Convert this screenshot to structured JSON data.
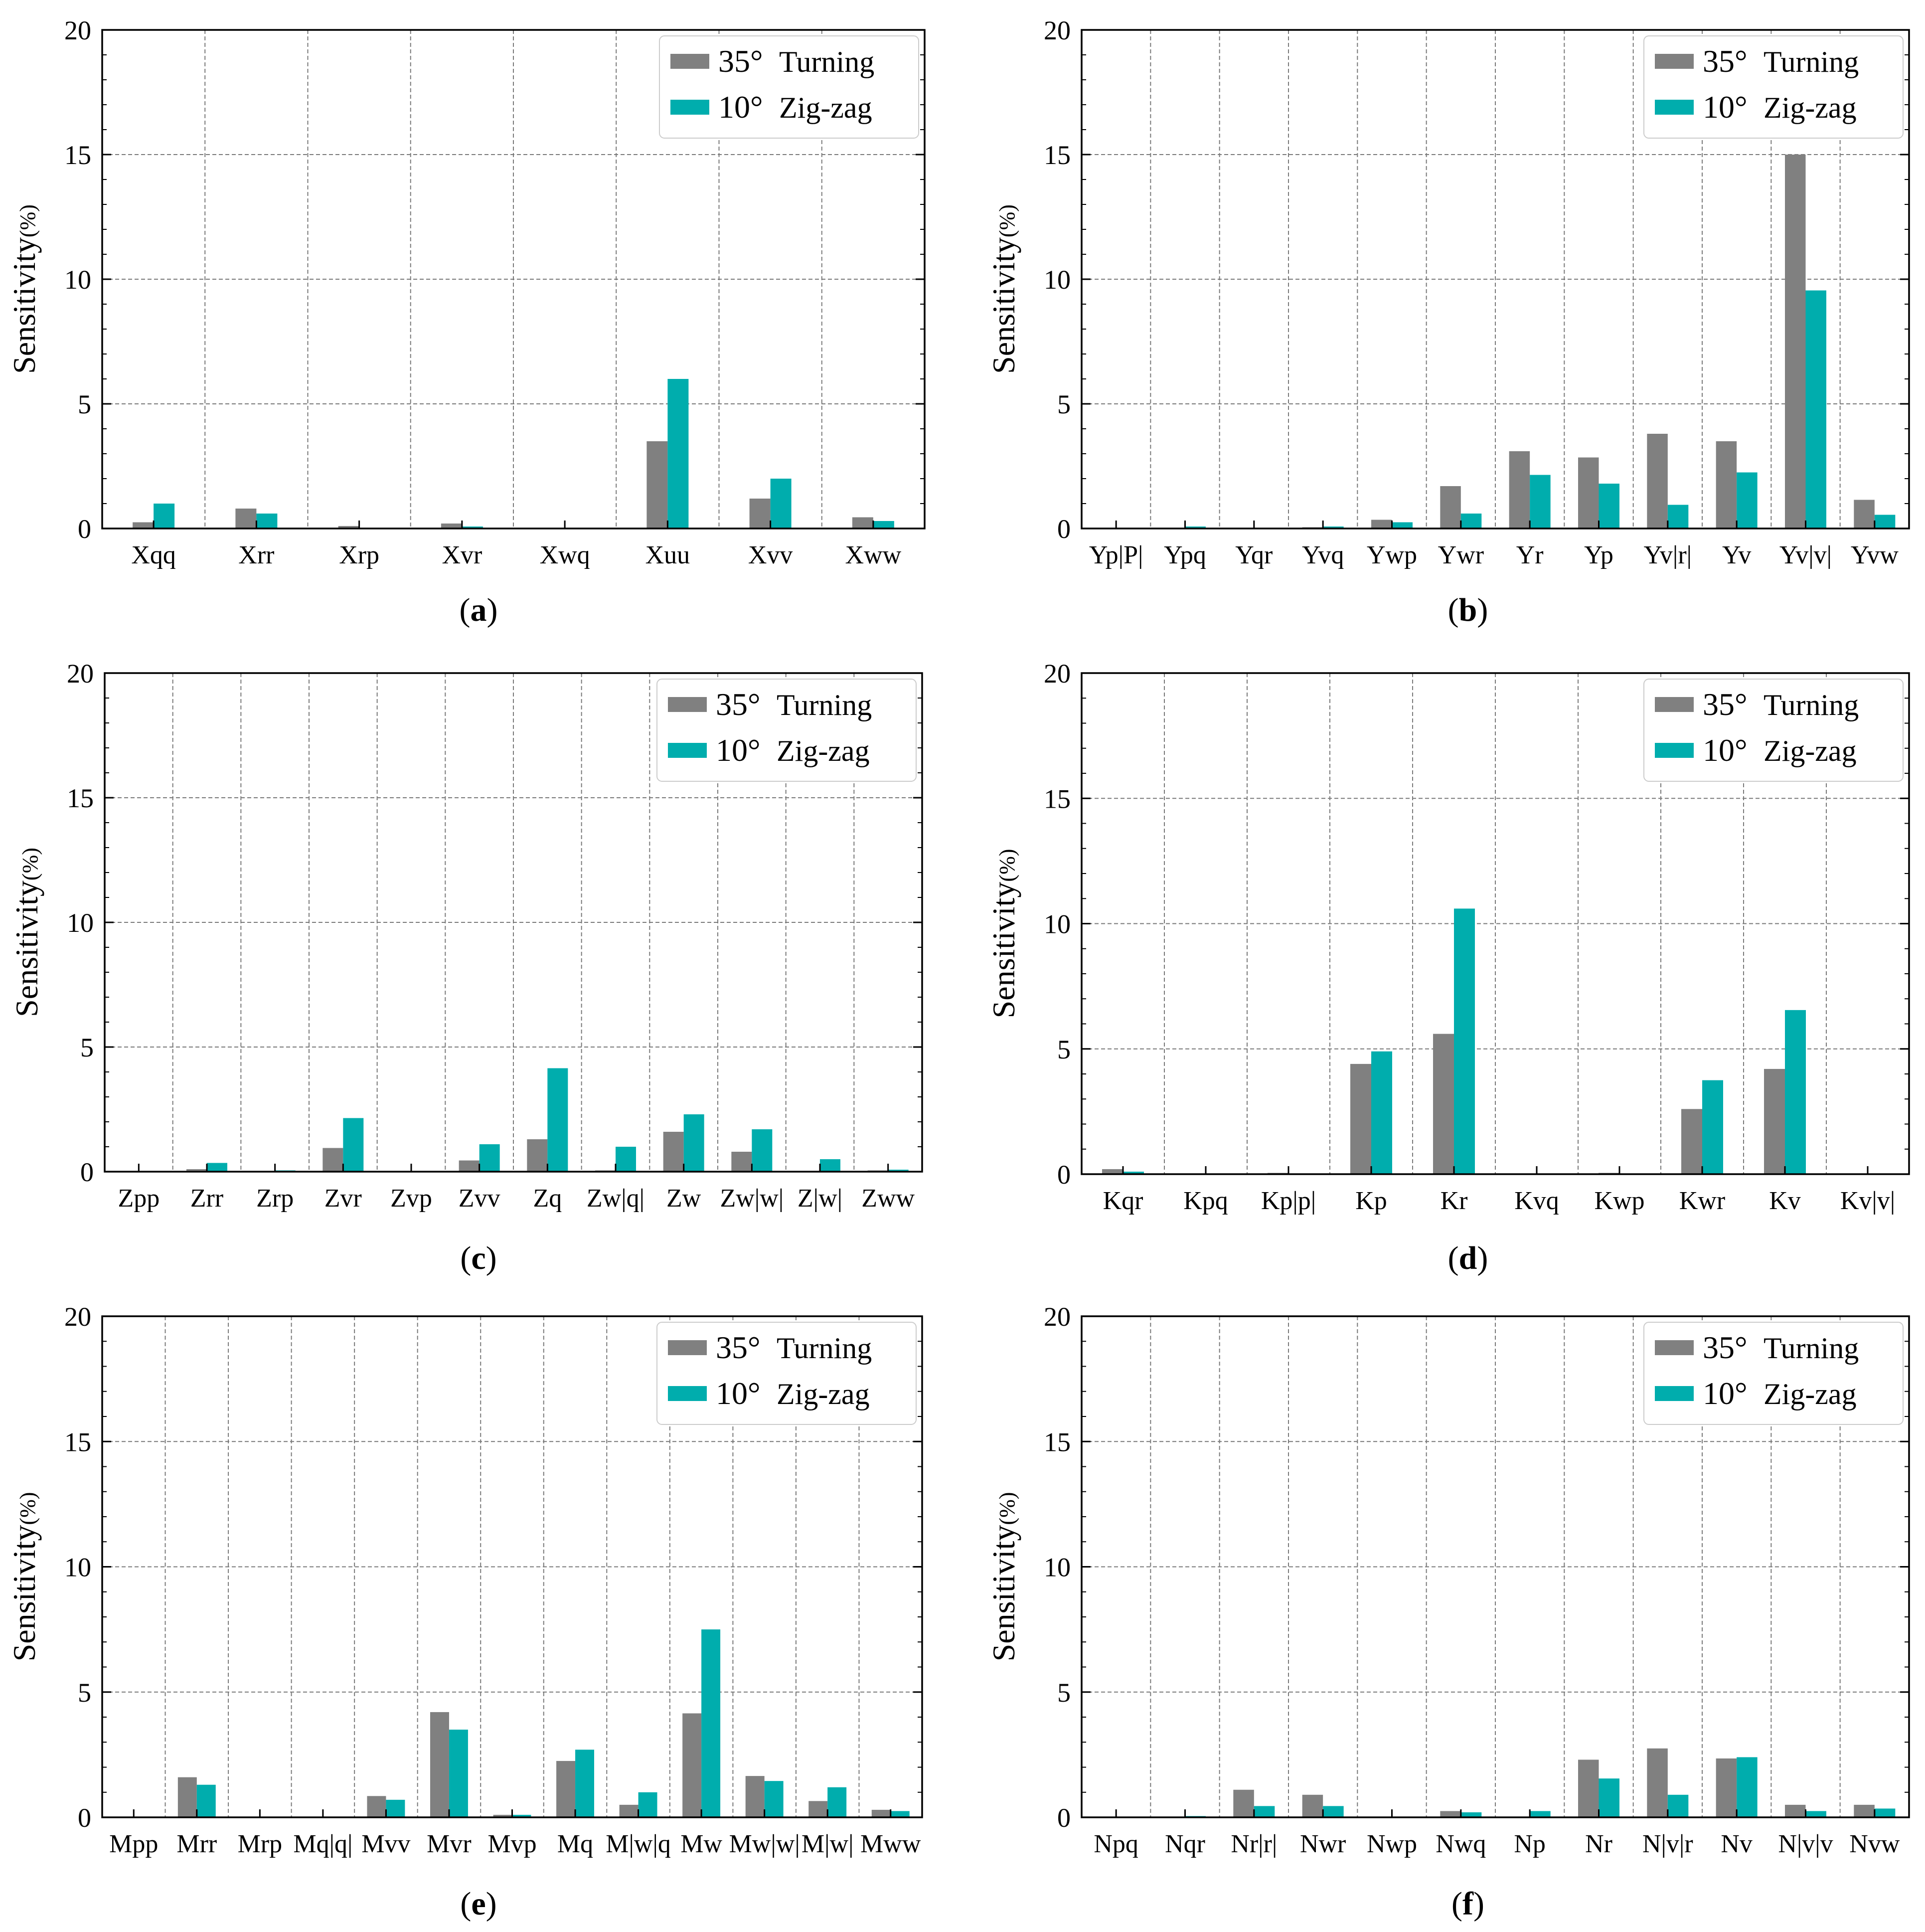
{
  "colors": {
    "turning": "#808080",
    "zigzag": "#00adad",
    "grid": "#7a7a7a",
    "axis": "#000000"
  },
  "chart_data": [
    {
      "panel": "a",
      "type": "bar",
      "caption_open": "(",
      "caption_letter": "a",
      "caption_close": ")",
      "ylabel": "Sensitivity",
      "ylabel_unit": "(%)",
      "ylim": [
        0,
        20
      ],
      "yticks": [
        "0",
        "5",
        "10",
        "15",
        "20"
      ],
      "yticks_values": [
        0,
        5,
        10,
        15,
        20
      ],
      "legend_position": "top-right",
      "categories": [
        "Xqq",
        "Xrr",
        "Xrp",
        "Xvr",
        "Xwq",
        "Xuu",
        "Xvv",
        "Xww"
      ],
      "series": [
        {
          "name_deg": "35°",
          "name_text": "Turning",
          "values": [
            0.25,
            0.8,
            0.1,
            0.2,
            0.02,
            3.5,
            1.2,
            0.45
          ]
        },
        {
          "name_deg": "10°",
          "name_text": "Zig-zag",
          "values": [
            1.0,
            0.6,
            0.02,
            0.08,
            0.0,
            6.0,
            2.0,
            0.3
          ]
        }
      ]
    },
    {
      "panel": "b",
      "type": "bar",
      "caption_open": "(",
      "caption_letter": "b",
      "caption_close": ")",
      "ylabel": "Sensitivity",
      "ylabel_unit": "(%)",
      "ylim": [
        0,
        20
      ],
      "yticks": [
        "0",
        "5",
        "10",
        "15",
        "20"
      ],
      "yticks_values": [
        0,
        5,
        10,
        15,
        20
      ],
      "legend_position": "top-right",
      "categories": [
        "Yp|P|",
        "Ypq",
        "Yqr",
        "Yvq",
        "Ywp",
        "Ywr",
        "Yr",
        "Yp",
        "Yv|r|",
        "Yv",
        "Yv|v|",
        "Yvw"
      ],
      "series": [
        {
          "name_deg": "35°",
          "name_text": "Turning",
          "values": [
            0.0,
            0.02,
            0.0,
            0.05,
            0.35,
            1.7,
            3.1,
            2.85,
            3.8,
            3.5,
            15.0,
            1.15
          ]
        },
        {
          "name_deg": "10°",
          "name_text": "Zig-zag",
          "values": [
            0.0,
            0.08,
            0.0,
            0.08,
            0.25,
            0.6,
            2.15,
            1.8,
            0.95,
            2.25,
            9.55,
            0.55
          ]
        }
      ]
    },
    {
      "panel": "c",
      "type": "bar",
      "caption_open": "(",
      "caption_letter": "c",
      "caption_close": ")",
      "ylabel": "Sensitivity",
      "ylabel_unit": "(%)",
      "ylim": [
        0,
        20
      ],
      "yticks": [
        "0",
        "5",
        "10",
        "15",
        "20"
      ],
      "yticks_values": [
        0,
        5,
        10,
        15,
        20
      ],
      "legend_position": "top-right",
      "categories": [
        "Zpp",
        "Zrr",
        "Zrp",
        "Zvr",
        "Zvp",
        "Zvv",
        "Zq",
        "Zw|q|",
        "Zw",
        "Zw|w|",
        "Z|w|",
        "Zww"
      ],
      "series": [
        {
          "name_deg": "35°",
          "name_text": "Turning",
          "values": [
            0.0,
            0.1,
            0.02,
            0.95,
            0.0,
            0.45,
            1.3,
            0.05,
            1.6,
            0.8,
            0.0,
            0.05
          ]
        },
        {
          "name_deg": "10°",
          "name_text": "Zig-zag",
          "values": [
            0.0,
            0.35,
            0.05,
            2.15,
            0.02,
            1.1,
            4.15,
            1.0,
            2.3,
            1.7,
            0.5,
            0.08
          ]
        }
      ]
    },
    {
      "panel": "d",
      "type": "bar",
      "caption_open": "(",
      "caption_letter": "d",
      "caption_close": ")",
      "ylabel": "Sensitivity",
      "ylabel_unit": "(%)",
      "ylim": [
        0,
        20
      ],
      "yticks": [
        "0",
        "5",
        "10",
        "15",
        "20"
      ],
      "yticks_values": [
        0,
        5,
        10,
        15,
        20
      ],
      "legend_position": "top-right",
      "categories": [
        "Kqr",
        "Kpq",
        "Kp|p|",
        "Kp",
        "Kr",
        "Kvq",
        "Kwp",
        "Kwr",
        "Kv",
        "Kv|v|"
      ],
      "series": [
        {
          "name_deg": "35°",
          "name_text": "Turning",
          "values": [
            0.2,
            0.0,
            0.05,
            4.4,
            5.6,
            0.0,
            0.05,
            2.6,
            4.2,
            0.02
          ]
        },
        {
          "name_deg": "10°",
          "name_text": "Zig-zag",
          "values": [
            0.1,
            0.0,
            0.03,
            4.9,
            10.6,
            0.0,
            0.0,
            3.75,
            6.55,
            0.0
          ]
        }
      ]
    },
    {
      "panel": "e",
      "type": "bar",
      "caption_open": "(",
      "caption_letter": "e",
      "caption_close": ")",
      "ylabel": "Sensitivity",
      "ylabel_unit": "(%)",
      "ylim": [
        0,
        20
      ],
      "yticks": [
        "0",
        "5",
        "10",
        "15",
        "20"
      ],
      "yticks_values": [
        0,
        5,
        10,
        15,
        20
      ],
      "legend_position": "top-right",
      "categories": [
        "Mpp",
        "Mrr",
        "Mrp",
        "Mq|q|",
        "Mvv",
        "Mvr",
        "Mvp",
        "Mq",
        "M|w|q",
        "Mw",
        "Mw|w|",
        "M|w|",
        "Mww"
      ],
      "series": [
        {
          "name_deg": "35°",
          "name_text": "Turning",
          "values": [
            0.0,
            1.6,
            0.0,
            0.0,
            0.85,
            4.2,
            0.1,
            2.25,
            0.5,
            4.15,
            1.65,
            0.65,
            0.3
          ]
        },
        {
          "name_deg": "10°",
          "name_text": "Zig-zag",
          "values": [
            0.0,
            1.3,
            0.0,
            0.0,
            0.7,
            3.5,
            0.1,
            2.7,
            1.0,
            7.5,
            1.45,
            1.2,
            0.25
          ]
        }
      ]
    },
    {
      "panel": "f",
      "type": "bar",
      "caption_open": "(",
      "caption_letter": "f",
      "caption_close": ")",
      "ylabel": "Sensitivity",
      "ylabel_unit": "(%)",
      "ylim": [
        0,
        20
      ],
      "yticks": [
        "0",
        "5",
        "10",
        "15",
        "20"
      ],
      "yticks_values": [
        0,
        5,
        10,
        15,
        20
      ],
      "legend_position": "top-right",
      "categories": [
        "Npq",
        "Nqr",
        "Nr|r|",
        "Nwr",
        "Nwp",
        "Nwq",
        "Np",
        "Nr",
        "N|v|r",
        "Nv",
        "N|v|v",
        "Nvw"
      ],
      "series": [
        {
          "name_deg": "35°",
          "name_text": "Turning",
          "values": [
            0.0,
            0.02,
            1.1,
            0.9,
            0.0,
            0.25,
            0.02,
            2.3,
            2.75,
            2.35,
            0.5,
            0.5
          ]
        },
        {
          "name_deg": "10°",
          "name_text": "Zig-zag",
          "values": [
            0.0,
            0.05,
            0.45,
            0.45,
            0.0,
            0.2,
            0.25,
            1.55,
            0.9,
            2.4,
            0.25,
            0.35
          ]
        }
      ]
    }
  ]
}
